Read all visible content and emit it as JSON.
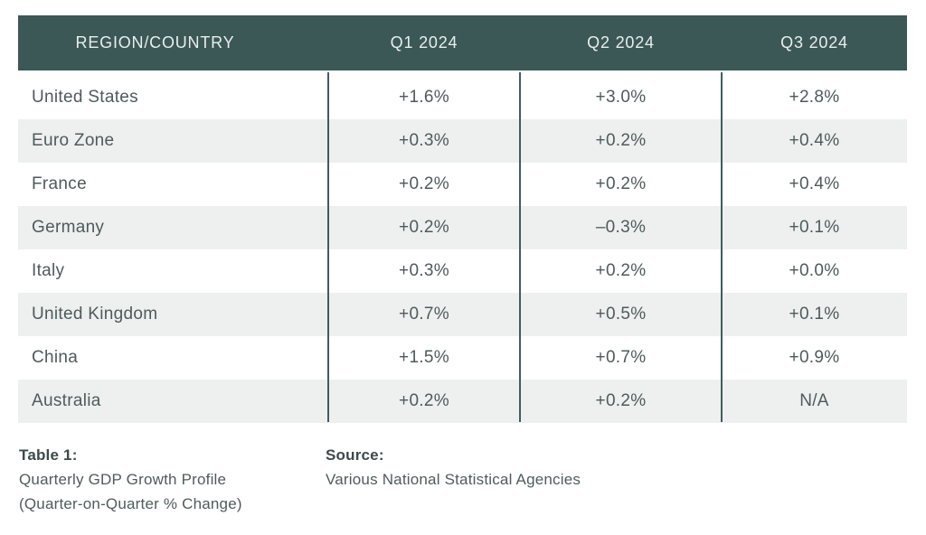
{
  "table": {
    "columns": [
      "REGION/COUNTRY",
      "Q1 2024",
      "Q2 2024",
      "Q3 2024"
    ],
    "rows": [
      {
        "region": "United States",
        "q1": "+1.6%",
        "q2": "+3.0%",
        "q3": "+2.8%"
      },
      {
        "region": "Euro Zone",
        "q1": "+0.3%",
        "q2": "+0.2%",
        "q3": "+0.4%"
      },
      {
        "region": "France",
        "q1": "+0.2%",
        "q2": "+0.2%",
        "q3": "+0.4%"
      },
      {
        "region": "Germany",
        "q1": "+0.2%",
        "q2": "–0.3%",
        "q3": "+0.1%"
      },
      {
        "region": "Italy",
        "q1": "+0.3%",
        "q2": "+0.2%",
        "q3": "+0.0%"
      },
      {
        "region": "United Kingdom",
        "q1": "+0.7%",
        "q2": "+0.5%",
        "q3": "+0.1%"
      },
      {
        "region": "China",
        "q1": "+1.5%",
        "q2": "+0.7%",
        "q3": "+0.9%"
      },
      {
        "region": "Australia",
        "q1": "+0.2%",
        "q2": "+0.2%",
        "q3": "N/A"
      }
    ]
  },
  "caption": {
    "label": "Table 1:",
    "line1": "Quarterly GDP Growth Profile",
    "line2": "(Quarter-on-Quarter % Change)"
  },
  "source": {
    "label": "Source:",
    "text": "Various National Statistical Agencies"
  },
  "colors": {
    "header_bg": "#3b5756",
    "header_text": "#e8efed",
    "row_alt_bg": "#edf0ef",
    "body_text": "#4e5b5a",
    "divider": "#3f5e5c"
  },
  "chart_data": {
    "type": "table",
    "title": "Table 1: Quarterly GDP Growth Profile (Quarter-on-Quarter % Change)",
    "columns": [
      "REGION/COUNTRY",
      "Q1 2024",
      "Q2 2024",
      "Q3 2024"
    ],
    "rows": [
      [
        "United States",
        1.6,
        3.0,
        2.8
      ],
      [
        "Euro Zone",
        0.3,
        0.2,
        0.4
      ],
      [
        "France",
        0.2,
        0.2,
        0.4
      ],
      [
        "Germany",
        0.2,
        -0.3,
        0.1
      ],
      [
        "Italy",
        0.3,
        0.2,
        0.0
      ],
      [
        "United Kingdom",
        0.7,
        0.5,
        0.1
      ],
      [
        "China",
        1.5,
        0.7,
        0.9
      ],
      [
        "Australia",
        0.2,
        0.2,
        null
      ]
    ],
    "units": "% quarter-on-quarter change",
    "source": "Various National Statistical Agencies"
  }
}
